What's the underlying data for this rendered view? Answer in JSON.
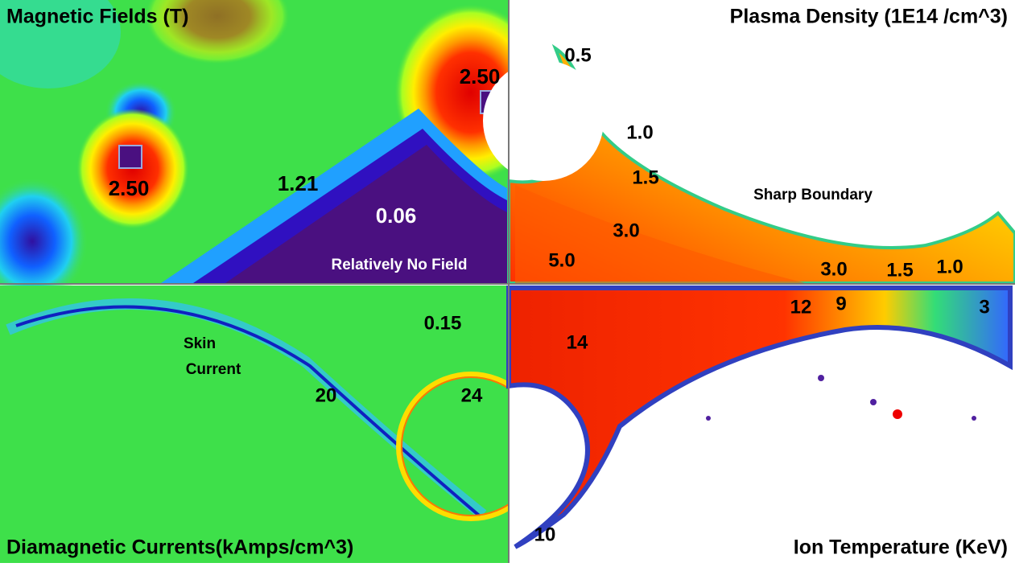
{
  "panels": [
    {
      "title": "Magnetic Fields (T)",
      "labels": [
        "2.50",
        "2.50",
        "1.21",
        "0.06",
        "Relatively No Field"
      ]
    },
    {
      "title": "Plasma Density (1E14 /cm^3)",
      "labels": [
        "0.5",
        "1.0",
        "1.5",
        "Sharp Boundary",
        "3.0",
        "5.0",
        "3.0",
        "1.5",
        "1.0"
      ]
    },
    {
      "title": "Diamagnetic Currents(kAmps/cm^3)",
      "labels": [
        "0.15",
        "Skin",
        "Current",
        "20",
        "24"
      ]
    },
    {
      "title": "Ion Temperature (KeV)",
      "labels": [
        "12",
        "9",
        "3",
        "14",
        "10"
      ]
    }
  ]
}
